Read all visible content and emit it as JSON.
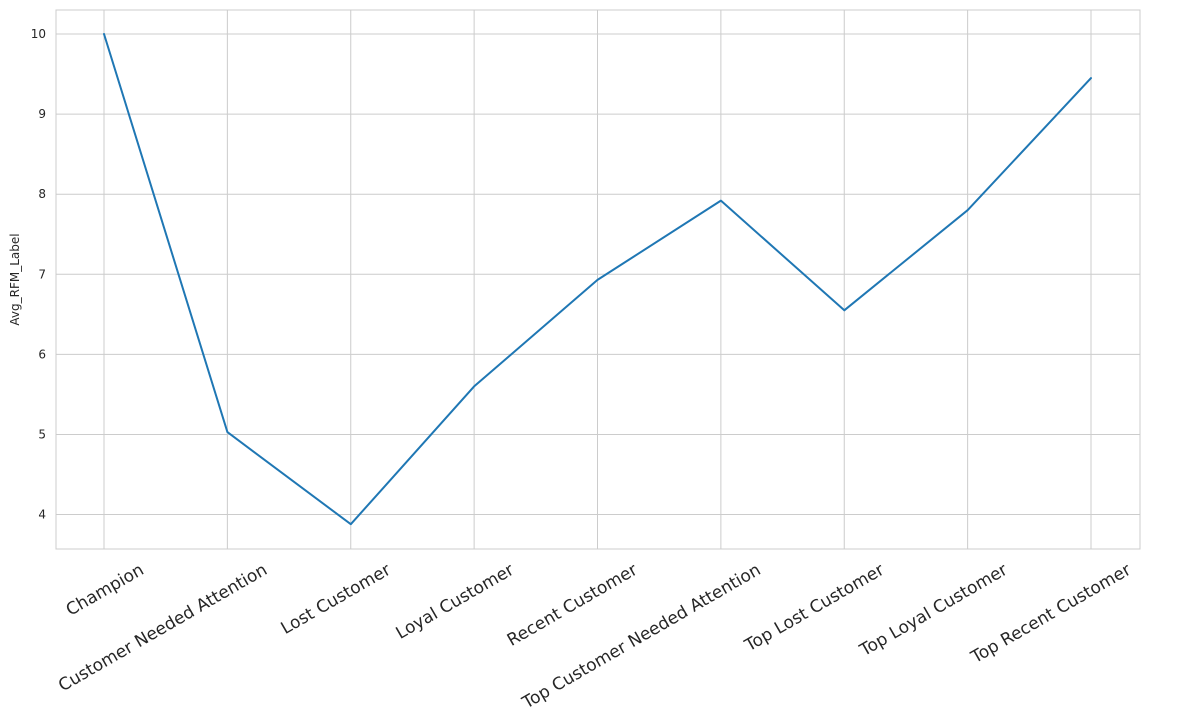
{
  "chart_data": {
    "type": "line",
    "title": "",
    "xlabel": "",
    "ylabel": "Avg_RFM_Label",
    "categories": [
      "Champion",
      "Customer Needed Attention",
      "Lost Customer",
      "Loyal Customer",
      "Recent Customer",
      "Top Customer Needed Attention",
      "Top Lost Customer",
      "Top Loyal Customer",
      "Top Recent Customer"
    ],
    "series": [
      {
        "color": "#1f77b4",
        "values": [
          10.0,
          5.03,
          3.88,
          5.6,
          6.93,
          7.92,
          6.55,
          7.8,
          9.45
        ]
      }
    ],
    "ylim": [
      3.57,
      10.3
    ],
    "yticks": [
      4,
      5,
      6,
      7,
      8,
      9,
      10
    ],
    "grid": true,
    "legend": "none"
  }
}
